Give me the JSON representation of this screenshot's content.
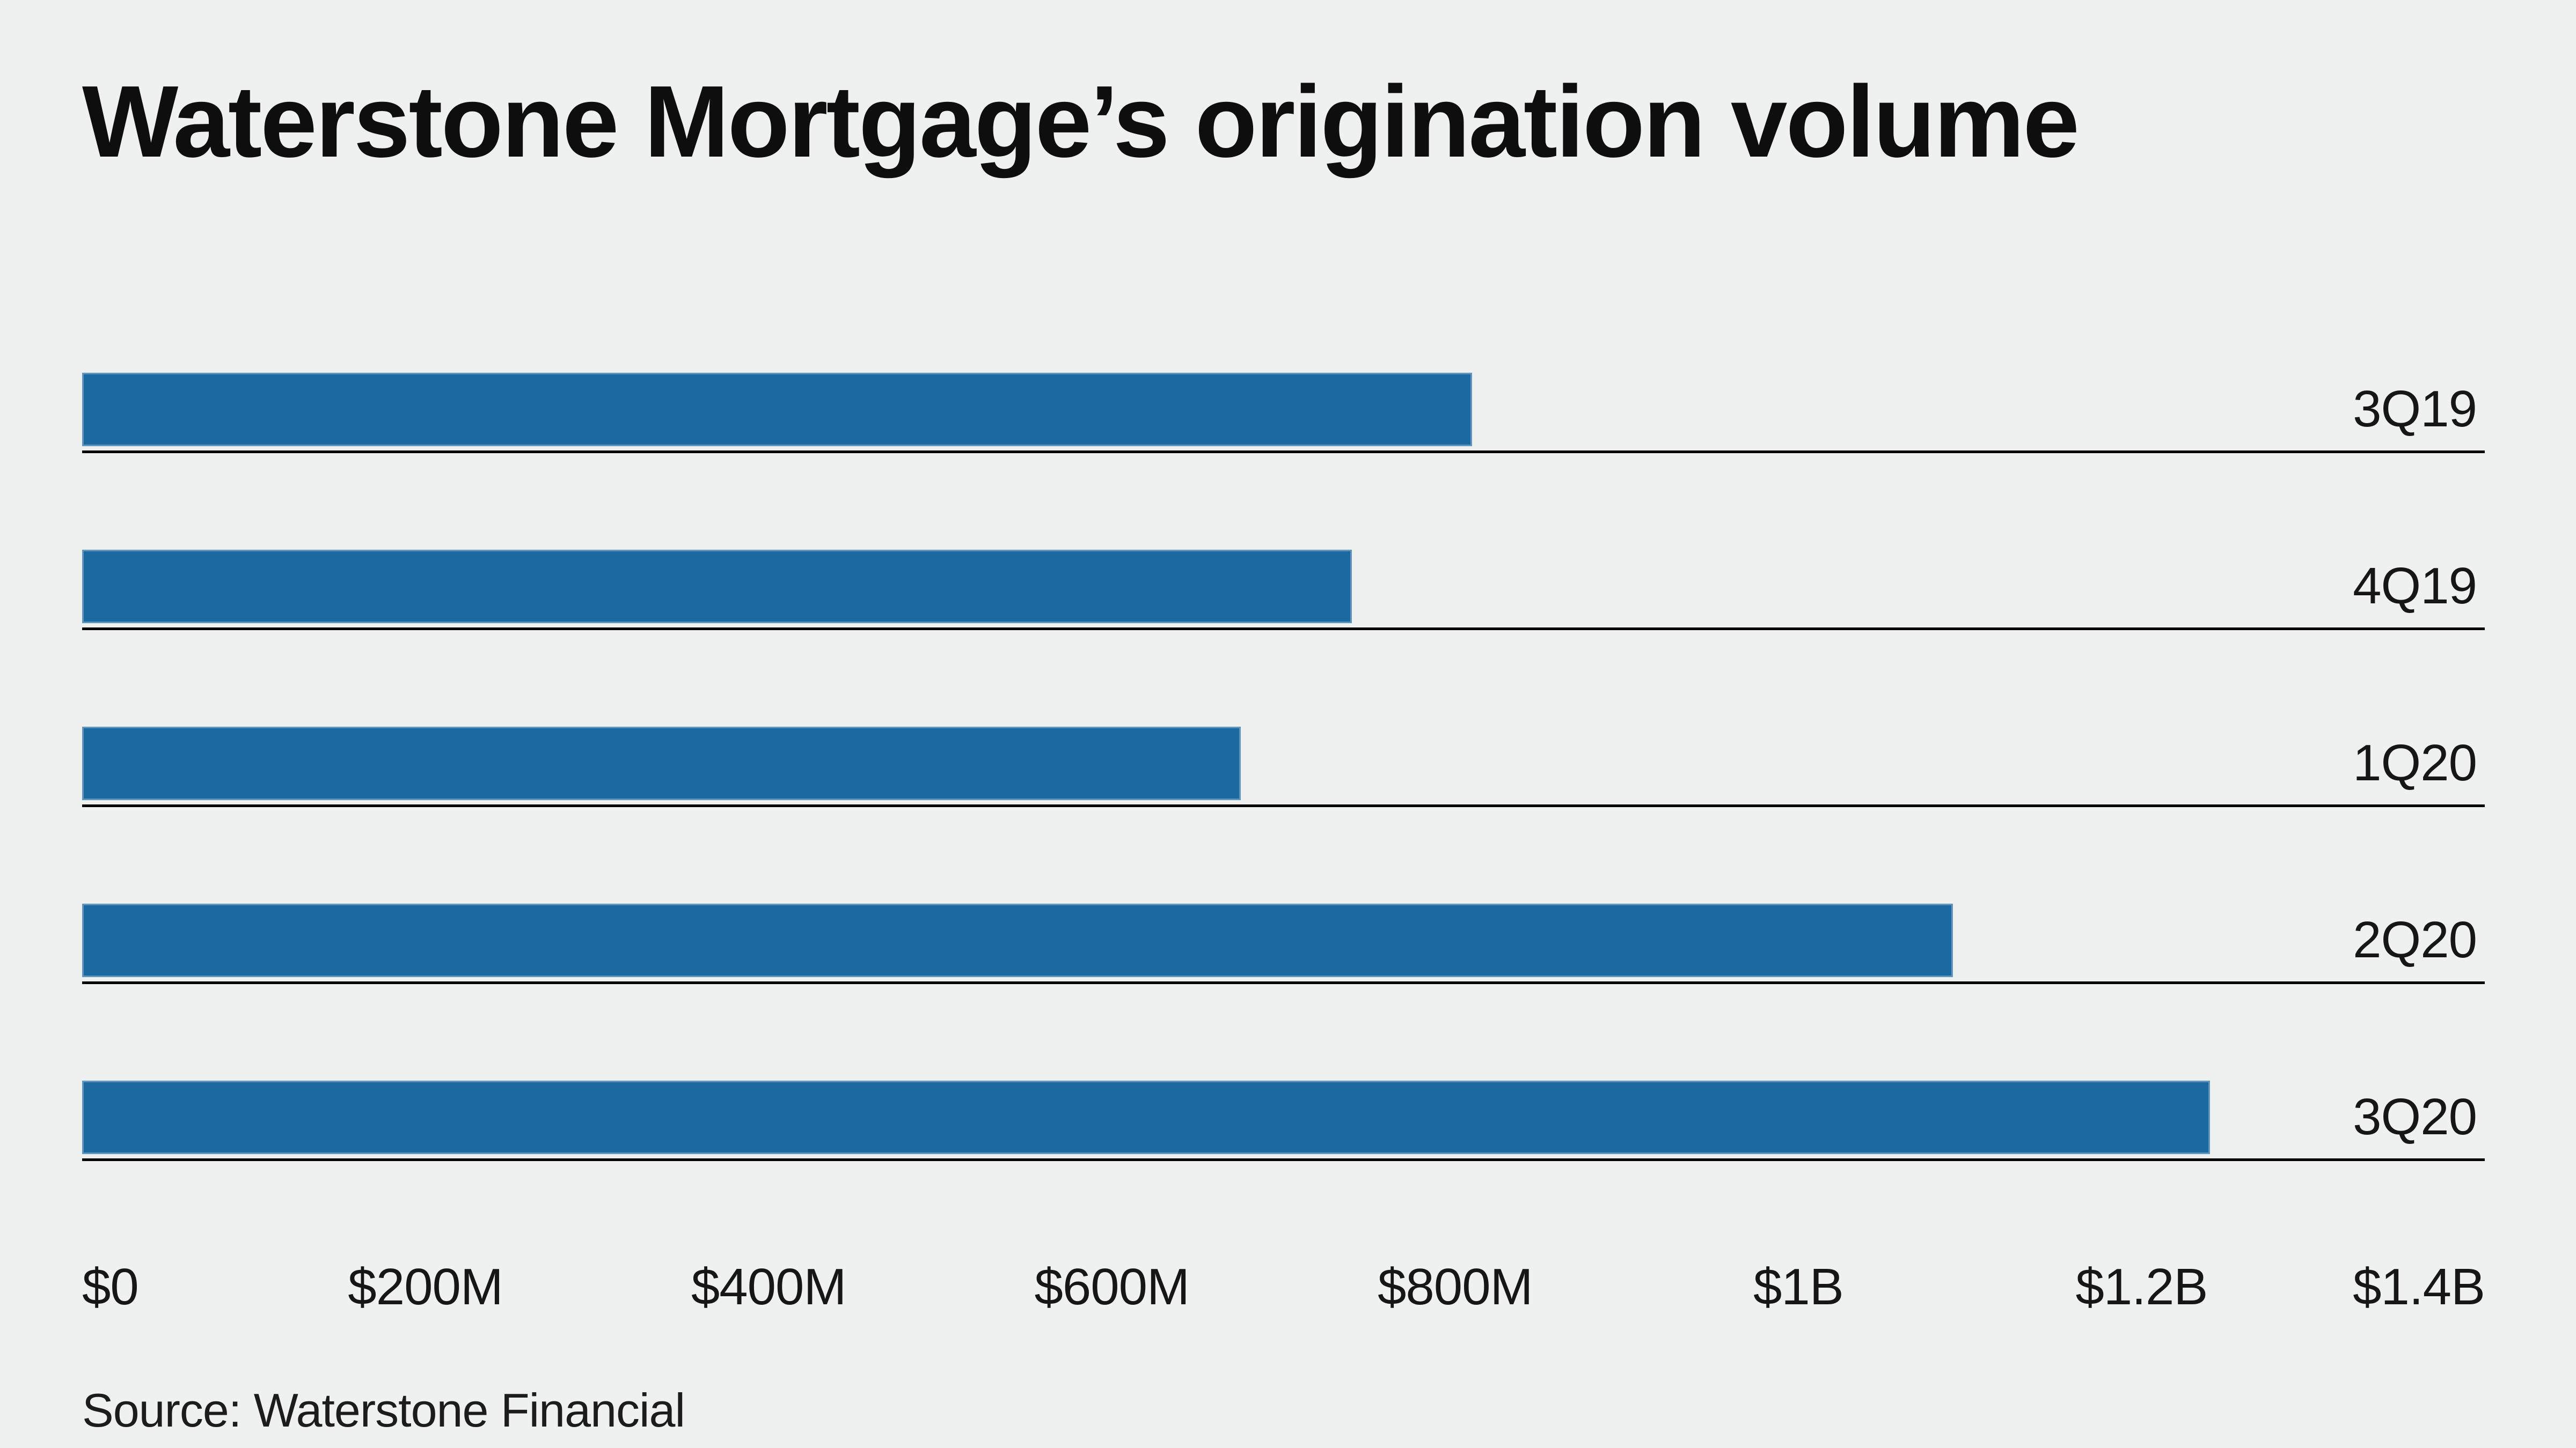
{
  "chart": {
    "title": "Waterstone Mortgage’s origination volume",
    "source": "Source: Waterstone Financial"
  },
  "chart_data": {
    "type": "bar",
    "orientation": "horizontal",
    "title": "Waterstone Mortgage’s origination volume",
    "categories": [
      "3Q19",
      "4Q19",
      "1Q20",
      "2Q20",
      "3Q20"
    ],
    "values": [
      810,
      740,
      675,
      1090,
      1240
    ],
    "value_unit": "USD millions",
    "xlabel": "",
    "ylabel": "",
    "xlim": [
      0,
      1400
    ],
    "x_ticks": [
      "$0",
      "$200M",
      "$400M",
      "$600M",
      "$800M",
      "$1B",
      "$1.2B",
      "$1.4B"
    ],
    "x_tick_values": [
      0,
      200,
      400,
      600,
      800,
      1000,
      1200,
      1400
    ],
    "grid": false,
    "legend": false,
    "bar_color": "#1c69a1",
    "background_color": "#eff1f0",
    "baseline_color": "#000000",
    "text_color": "#0e0e0e",
    "source": "Source: Waterstone Financial"
  }
}
